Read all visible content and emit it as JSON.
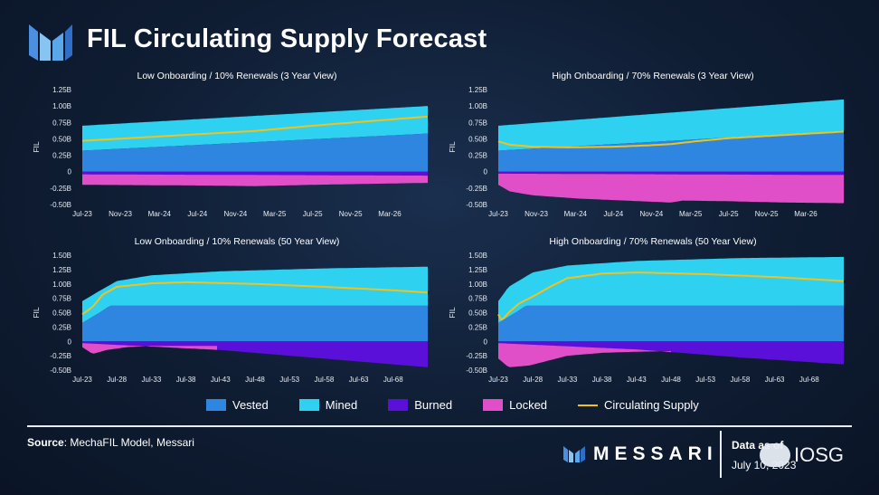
{
  "header": {
    "title": "FIL Circulating Supply Forecast"
  },
  "colors": {
    "vested": "#2f86e0",
    "mined": "#2ed1f0",
    "burned": "#5a10d8",
    "locked": "#e04ec8",
    "circulating": "#f2c21b"
  },
  "legend": [
    {
      "label": "Vested",
      "color": "#2f86e0",
      "kind": "box"
    },
    {
      "label": "Mined",
      "color": "#2ed1f0",
      "kind": "box"
    },
    {
      "label": "Burned",
      "color": "#5a10d8",
      "kind": "box"
    },
    {
      "label": "Locked",
      "color": "#e04ec8",
      "kind": "box"
    },
    {
      "label": "Circulating Supply",
      "color": "#f2c21b",
      "kind": "line"
    }
  ],
  "footer": {
    "source_label": "Source",
    "source_text": ": MechaFIL Model, Messari",
    "brand": "MESSARI",
    "data_as_of": "Data as of",
    "date": "July 10, 2023",
    "watermark": "IOSG"
  },
  "chart_data": [
    {
      "type": "area",
      "title": "Low Onboarding / 10% Renewals (3 Year View)",
      "ylabel": "FIL",
      "ylim": [
        -0.5,
        1.25
      ],
      "yticks": [
        "1.25B",
        "1.00B",
        "0.75B",
        "0.50B",
        "0.25B",
        "0",
        "-0.25B",
        "-0.50B"
      ],
      "xlim": [
        2023.5,
        2026.5
      ],
      "xticks": [
        "Jul-23",
        "Nov-23",
        "Mar-24",
        "Jul-24",
        "Nov-24",
        "Mar-25",
        "Jul-25",
        "Nov-25",
        "Mar-26"
      ],
      "xtick_pos": [
        2023.5,
        2023.83,
        2024.17,
        2024.5,
        2024.83,
        2025.17,
        2025.5,
        2025.83,
        2026.17
      ],
      "series": [
        {
          "name": "Vested",
          "points": [
            [
              2023.5,
              0.32
            ],
            [
              2026.5,
              0.58
            ]
          ]
        },
        {
          "name": "Mined",
          "points": [
            [
              2023.5,
              0.7
            ],
            [
              2026.5,
              1.0
            ]
          ]
        },
        {
          "name": "Burned",
          "points": [
            [
              2023.5,
              -0.04
            ],
            [
              2026.5,
              -0.06
            ]
          ]
        },
        {
          "name": "Locked",
          "points": [
            [
              2023.5,
              -0.2
            ],
            [
              2024.5,
              -0.21
            ],
            [
              2025.0,
              -0.22
            ],
            [
              2025.5,
              -0.2
            ],
            [
              2026.5,
              -0.17
            ]
          ]
        },
        {
          "name": "Circulating Supply",
          "points": [
            [
              2023.5,
              0.47
            ],
            [
              2024.0,
              0.52
            ],
            [
              2024.5,
              0.57
            ],
            [
              2025.0,
              0.62
            ],
            [
              2025.5,
              0.7
            ],
            [
              2026.0,
              0.77
            ],
            [
              2026.5,
              0.84
            ]
          ]
        }
      ]
    },
    {
      "type": "area",
      "title": "High Onboarding / 70% Renewals (3 Year View)",
      "ylabel": "FIL",
      "ylim": [
        -0.5,
        1.25
      ],
      "yticks": [
        "1.25B",
        "1.00B",
        "0.75B",
        "0.50B",
        "0.25B",
        "0",
        "-0.25B",
        "-0.50B"
      ],
      "xlim": [
        2023.5,
        2026.5
      ],
      "xticks": [
        "Jul-23",
        "Nov-23",
        "Mar-24",
        "Jul-24",
        "Nov-24",
        "Mar-25",
        "Jul-25",
        "Nov-25",
        "Mar-26"
      ],
      "xtick_pos": [
        2023.5,
        2023.83,
        2024.17,
        2024.5,
        2024.83,
        2025.17,
        2025.5,
        2025.83,
        2026.17
      ],
      "series": [
        {
          "name": "Vested",
          "points": [
            [
              2023.5,
              0.32
            ],
            [
              2026.5,
              0.62
            ]
          ]
        },
        {
          "name": "Mined",
          "points": [
            [
              2023.5,
              0.7
            ],
            [
              2026.5,
              1.1
            ]
          ]
        },
        {
          "name": "Burned",
          "points": [
            [
              2023.5,
              -0.03
            ],
            [
              2026.5,
              -0.05
            ]
          ]
        },
        {
          "name": "Locked",
          "points": [
            [
              2023.5,
              -0.2
            ],
            [
              2023.6,
              -0.3
            ],
            [
              2023.8,
              -0.36
            ],
            [
              2024.2,
              -0.41
            ],
            [
              2024.6,
              -0.44
            ],
            [
              2025.0,
              -0.47
            ],
            [
              2025.1,
              -0.44
            ],
            [
              2025.5,
              -0.45
            ],
            [
              2026.0,
              -0.47
            ],
            [
              2026.5,
              -0.48
            ]
          ]
        },
        {
          "name": "Circulating Supply",
          "points": [
            [
              2023.5,
              0.46
            ],
            [
              2023.6,
              0.41
            ],
            [
              2023.8,
              0.38
            ],
            [
              2024.1,
              0.37
            ],
            [
              2024.5,
              0.38
            ],
            [
              2024.8,
              0.4
            ],
            [
              2025.0,
              0.42
            ],
            [
              2025.2,
              0.46
            ],
            [
              2025.5,
              0.51
            ],
            [
              2026.0,
              0.56
            ],
            [
              2026.5,
              0.61
            ]
          ]
        }
      ]
    },
    {
      "type": "area",
      "title": "Low Onboarding / 10% Renewals (50 Year View)",
      "ylabel": "FIL",
      "ylim": [
        -0.5,
        1.5
      ],
      "yticks": [
        "1.50B",
        "1.25B",
        "1.00B",
        "0.75B",
        "0.50B",
        "0.25B",
        "0",
        "-0.25B",
        "-0.50B"
      ],
      "xlim": [
        2023.5,
        2073.5
      ],
      "xticks": [
        "Jul-23",
        "Jul-28",
        "Jul-33",
        "Jul-38",
        "Jul-43",
        "Jul-48",
        "Jul-53",
        "Jul-58",
        "Jul-63",
        "Jul-68"
      ],
      "xtick_pos": [
        2023.5,
        2028.5,
        2033.5,
        2038.5,
        2043.5,
        2048.5,
        2053.5,
        2058.5,
        2063.5,
        2068.5
      ],
      "series": [
        {
          "name": "Vested",
          "points": [
            [
              2023.5,
              0.32
            ],
            [
              2026,
              0.5
            ],
            [
              2027.5,
              0.62
            ],
            [
              2073.5,
              0.62
            ]
          ]
        },
        {
          "name": "Mined",
          "points": [
            [
              2023.5,
              0.7
            ],
            [
              2026,
              0.88
            ],
            [
              2028.5,
              1.05
            ],
            [
              2033.5,
              1.15
            ],
            [
              2043.5,
              1.22
            ],
            [
              2058.5,
              1.27
            ],
            [
              2073.5,
              1.3
            ]
          ]
        },
        {
          "name": "Burned",
          "points": [
            [
              2023.5,
              -0.03
            ],
            [
              2043.5,
              -0.15
            ],
            [
              2058.5,
              -0.3
            ],
            [
              2073.5,
              -0.45
            ]
          ]
        },
        {
          "name": "Locked",
          "points": [
            [
              2023.5,
              -0.1
            ],
            [
              2025,
              -0.22
            ],
            [
              2027,
              -0.15
            ],
            [
              2030,
              -0.1
            ],
            [
              2033.5,
              -0.08
            ],
            [
              2038,
              -0.08
            ],
            [
              2043,
              -0.08
            ]
          ]
        },
        {
          "name": "Circulating Supply",
          "points": [
            [
              2023.5,
              0.47
            ],
            [
              2025,
              0.6
            ],
            [
              2026.5,
              0.82
            ],
            [
              2028.5,
              0.95
            ],
            [
              2033.5,
              1.01
            ],
            [
              2038.5,
              1.03
            ],
            [
              2048.5,
              1.0
            ],
            [
              2058.5,
              0.95
            ],
            [
              2068.5,
              0.89
            ],
            [
              2073.5,
              0.85
            ]
          ]
        }
      ]
    },
    {
      "type": "area",
      "title": "High Onboarding / 70% Renewals (50 Year View)",
      "ylabel": "FIL",
      "ylim": [
        -0.5,
        1.5
      ],
      "yticks": [
        "1.50B",
        "1.25B",
        "1.00B",
        "0.75B",
        "0.50B",
        "0.25B",
        "0",
        "-0.25B",
        "-0.50B"
      ],
      "xlim": [
        2023.5,
        2073.5
      ],
      "xticks": [
        "Jul-23",
        "Jul-28",
        "Jul-33",
        "Jul-38",
        "Jul-43",
        "Jul-48",
        "Jul-53",
        "Jul-58",
        "Jul-63",
        "Jul-68"
      ],
      "xtick_pos": [
        2023.5,
        2028.5,
        2033.5,
        2038.5,
        2043.5,
        2048.5,
        2053.5,
        2058.5,
        2063.5,
        2068.5
      ],
      "series": [
        {
          "name": "Vested",
          "points": [
            [
              2023.5,
              0.32
            ],
            [
              2026,
              0.5
            ],
            [
              2027.5,
              0.62
            ],
            [
              2073.5,
              0.62
            ]
          ]
        },
        {
          "name": "Mined",
          "points": [
            [
              2023.5,
              0.7
            ],
            [
              2025,
              0.95
            ],
            [
              2028.5,
              1.2
            ],
            [
              2033.5,
              1.32
            ],
            [
              2043.5,
              1.4
            ],
            [
              2058.5,
              1.45
            ],
            [
              2073.5,
              1.47
            ]
          ]
        },
        {
          "name": "Burned",
          "points": [
            [
              2023.5,
              -0.03
            ],
            [
              2043.5,
              -0.14
            ],
            [
              2058.5,
              -0.28
            ],
            [
              2073.5,
              -0.4
            ]
          ]
        },
        {
          "name": "Locked",
          "points": [
            [
              2023.5,
              -0.3
            ],
            [
              2025,
              -0.45
            ],
            [
              2028,
              -0.42
            ],
            [
              2033.5,
              -0.25
            ],
            [
              2038.5,
              -0.2
            ],
            [
              2043.5,
              -0.18
            ],
            [
              2048.5,
              -0.17
            ]
          ]
        },
        {
          "name": "Circulating Supply",
          "points": [
            [
              2023.5,
              0.47
            ],
            [
              2024,
              0.36
            ],
            [
              2025,
              0.5
            ],
            [
              2026.5,
              0.66
            ],
            [
              2028.5,
              0.78
            ],
            [
              2031,
              0.95
            ],
            [
              2033.5,
              1.1
            ],
            [
              2038.5,
              1.18
            ],
            [
              2043.5,
              1.2
            ],
            [
              2053.5,
              1.17
            ],
            [
              2063.5,
              1.12
            ],
            [
              2073.5,
              1.05
            ]
          ]
        }
      ]
    }
  ]
}
